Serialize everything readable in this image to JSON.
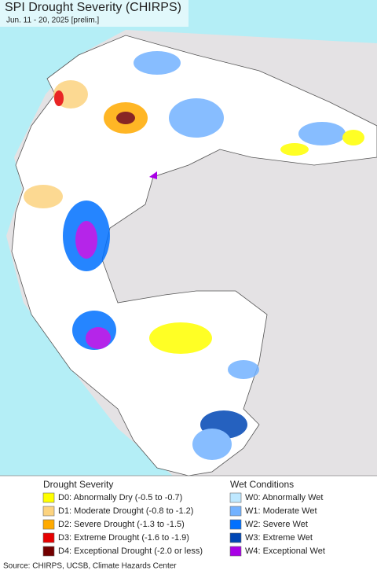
{
  "header": {
    "title": "SPI Drought Severity (CHIRPS)",
    "subtitle": "Jun. 11 - 20, 2025 [prelim.]"
  },
  "legend": {
    "drought": {
      "title": "Drought Severity",
      "items": [
        {
          "label": "D0: Abnormally Dry (-0.5 to -0.7)",
          "color": "#ffff00"
        },
        {
          "label": "D1: Moderate Drought (-0.8 to -1.2)",
          "color": "#fcd37f"
        },
        {
          "label": "D2: Severe Drought (-1.3 to -1.5)",
          "color": "#ffaa00"
        },
        {
          "label": "D3: Extreme Drought (-1.6 to -1.9)",
          "color": "#e60000"
        },
        {
          "label": "D4: Exceptional Drought (-2.0 or less)",
          "color": "#730000"
        }
      ]
    },
    "wet": {
      "title": "Wet Conditions",
      "items": [
        {
          "label": "W0: Abnormally Wet",
          "color": "#bee8ff"
        },
        {
          "label": "W1: Moderate Wet",
          "color": "#73b2ff"
        },
        {
          "label": "W2: Severe Wet",
          "color": "#0070ff"
        },
        {
          "label": "W3: Extreme Wet",
          "color": "#0046b4"
        },
        {
          "label": "W4: Exceptional Wet",
          "color": "#a900e6"
        }
      ]
    }
  },
  "footer": {
    "source": "Source: CHIRPS, UCSB, Climate Hazards Center"
  }
}
